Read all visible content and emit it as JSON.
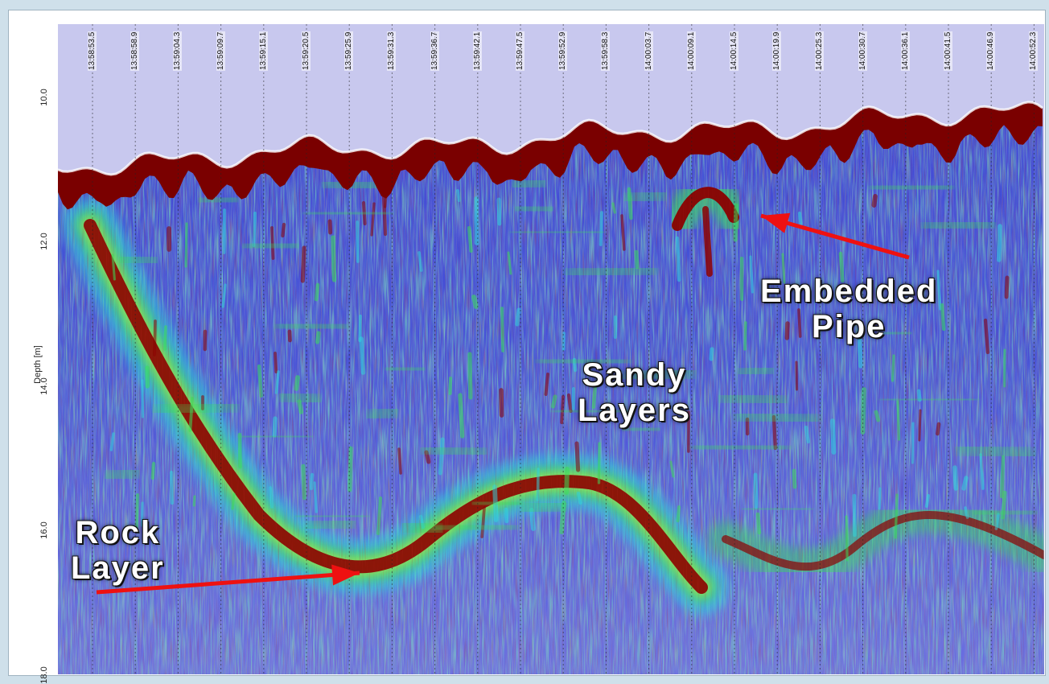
{
  "chart_data": {
    "type": "heatmap",
    "title": "",
    "xlabel": "",
    "ylabel": "Depth [m]",
    "ylim": [
      9.0,
      18.0
    ],
    "y_ticks": [
      "10.0",
      "12.0",
      "14.0",
      "16.0",
      "18.0"
    ],
    "y_tick_values": [
      10.0,
      12.0,
      14.0,
      16.0,
      18.0
    ],
    "x_time_labels": [
      "13:58:53.5",
      "13:58:58.9",
      "13:59:04.3",
      "13:59:09.7",
      "13:59:15.1",
      "13:59:20.5",
      "13:59:25.9",
      "13:59:31.3",
      "13:59:36.7",
      "13:59:42.1",
      "13:59:47.5",
      "13:59:52.9",
      "13:59:58.3",
      "14:00:03.7",
      "14:00:09.1",
      "14:00:14.5",
      "14:00:19.9",
      "14:00:25.3",
      "14:00:30.7",
      "14:00:36.1",
      "14:00:41.5",
      "14:00:46.9",
      "14:00:52.3"
    ],
    "grid": true,
    "colormap": [
      "#3a3ecf",
      "#2fd6e0",
      "#38e05a",
      "#f2f21a",
      "#8b0000"
    ],
    "background_color": "#c8c8ee",
    "annotations": [
      {
        "text": "Embedded\nPipe"
      },
      {
        "text": "Sandy\nLayers"
      },
      {
        "text": "Rock\nLayer"
      }
    ],
    "arrow_color": "#ee1111"
  }
}
